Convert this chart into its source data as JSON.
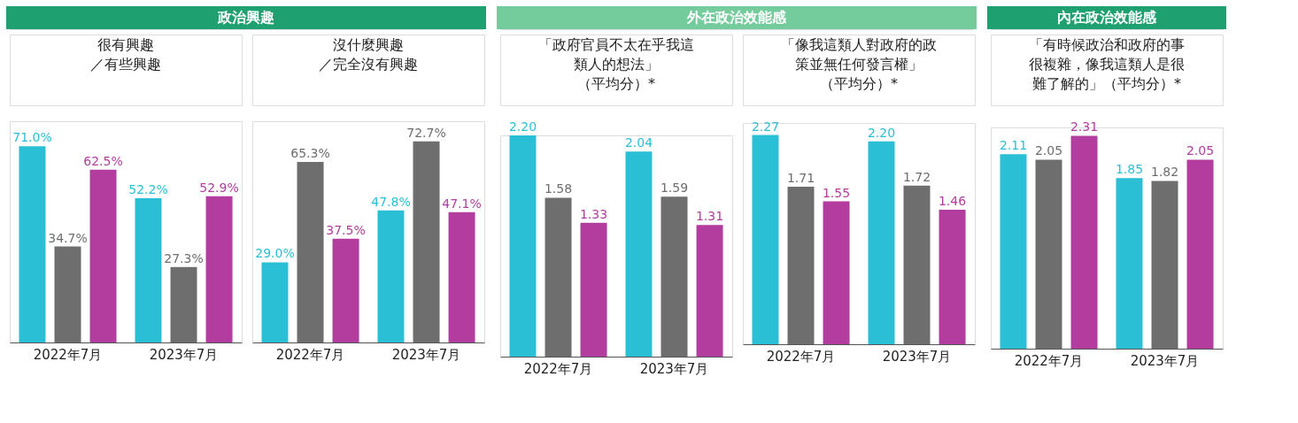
{
  "chart_data": [
    {
      "type": "bar",
      "annotations": [
        "政治興趣"
      ],
      "title": "很有興趣／有些興趣",
      "categories": [
        "2022年7月",
        "2023年7月"
      ],
      "series": [
        {
          "color": "#2bbfd6",
          "values": [
            71.0,
            52.2
          ],
          "value_labels": [
            "71.0%",
            "52.2%"
          ]
        },
        {
          "color": "#6e6e6e",
          "values": [
            34.7,
            27.3
          ],
          "value_labels": [
            "34.7%",
            "27.3%"
          ]
        },
        {
          "color": "#b23d9f",
          "values": [
            62.5,
            52.9
          ],
          "value_labels": [
            "62.5%",
            "52.9%"
          ]
        }
      ]
    },
    {
      "type": "bar",
      "title": "沒什麼興趣／完全沒有興趣",
      "categories": [
        "2022年7月",
        "2023年7月"
      ],
      "series": [
        {
          "color": "#2bbfd6",
          "values": [
            29.0,
            47.8
          ],
          "value_labels": [
            "29.0%",
            "47.8%"
          ]
        },
        {
          "color": "#6e6e6e",
          "values": [
            65.3,
            72.7
          ],
          "value_labels": [
            "65.3%",
            "72.7%"
          ]
        },
        {
          "color": "#b23d9f",
          "values": [
            37.5,
            47.1
          ],
          "value_labels": [
            "37.5%",
            "47.1%"
          ]
        }
      ]
    },
    {
      "type": "bar",
      "annotations": [
        "外在政治效能感"
      ],
      "title": "「政府官員不太在乎我這類人的想法」（平均分）*",
      "categories": [
        "2022年7月",
        "2023年7月"
      ],
      "series": [
        {
          "color": "#2bbfd6",
          "values": [
            2.2,
            2.04
          ],
          "value_labels": [
            "2.20",
            "2.04"
          ]
        },
        {
          "color": "#6e6e6e",
          "values": [
            1.58,
            1.59
          ],
          "value_labels": [
            "1.58",
            "1.59"
          ]
        },
        {
          "color": "#b23d9f",
          "values": [
            1.33,
            1.31
          ],
          "value_labels": [
            "1.33",
            "1.31"
          ]
        }
      ]
    },
    {
      "type": "bar",
      "title": "「像我這類人對政府的政策並無任何發言權」（平均分）*",
      "categories": [
        "2022年7月",
        "2023年7月"
      ],
      "series": [
        {
          "color": "#2bbfd6",
          "values": [
            2.27,
            2.2
          ],
          "value_labels": [
            "2.27",
            "2.20"
          ]
        },
        {
          "color": "#6e6e6e",
          "values": [
            1.71,
            1.72
          ],
          "value_labels": [
            "1.71",
            "1.72"
          ]
        },
        {
          "color": "#b23d9f",
          "values": [
            1.55,
            1.46
          ],
          "value_labels": [
            "1.55",
            "1.46"
          ]
        }
      ]
    },
    {
      "type": "bar",
      "annotations": [
        "內在政治效能感"
      ],
      "title": "「有時候政治和政府的事很複雜，像我這類人是很難了解的」（平均分）*",
      "categories": [
        "2022年7月",
        "2023年7月"
      ],
      "series": [
        {
          "color": "#2bbfd6",
          "values": [
            2.11,
            1.85
          ],
          "value_labels": [
            "2.11",
            "1.85"
          ]
        },
        {
          "color": "#6e6e6e",
          "values": [
            2.05,
            1.82
          ],
          "value_labels": [
            "2.05",
            "1.82"
          ]
        },
        {
          "color": "#b23d9f",
          "values": [
            2.31,
            2.05
          ],
          "value_labels": [
            "2.31",
            "2.05"
          ]
        }
      ]
    }
  ]
}
